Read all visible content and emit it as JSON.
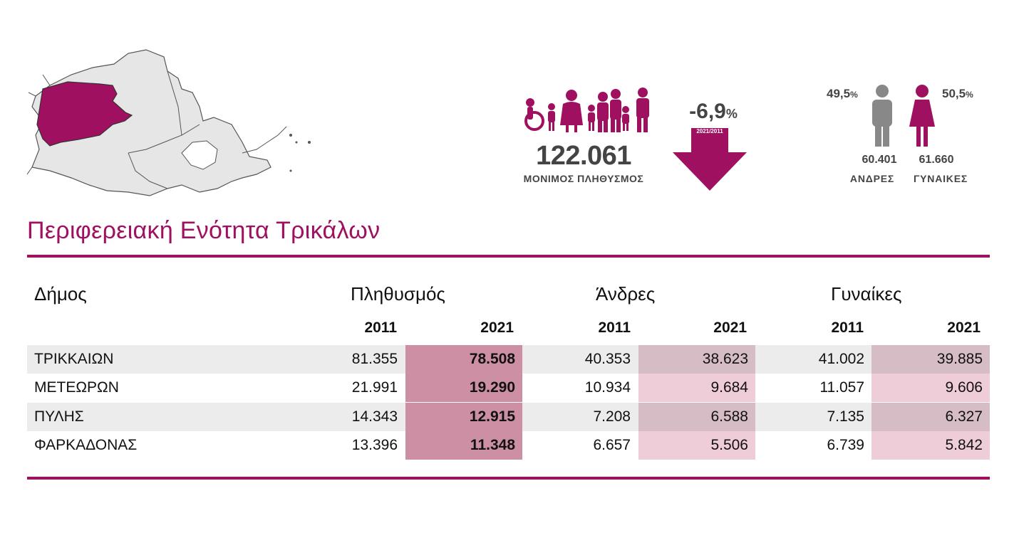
{
  "summary": {
    "total_population": "122.061",
    "total_label": "ΜΟΝΙΜΟΣ ΠΛΗΘΥΣΜΟΣ",
    "change_value": "-6,9",
    "change_unit": "%",
    "change_period": "2021/2011",
    "men_percent": "49,5",
    "women_percent": "50,5",
    "percent_sign": "%",
    "men_count": "60.401",
    "women_count": "61.660",
    "men_label": "ΑΝΔΡΕΣ",
    "women_label": "ΓΥΝΑΙΚΕΣ"
  },
  "title": "Περιφερειακή Ενότητα Τρικάλων",
  "colors": {
    "accent": "#a01060",
    "map_fill": "#e6e6e6",
    "pop_2021_bg": "#cc8fa3",
    "men_women_2021_dark_bg": "#d6bcc5",
    "men_women_2021_light_bg": "#efcdd8",
    "row_shade": "#ececec"
  },
  "icons": {
    "map": "regional-map-icon",
    "population": "population-group-icon",
    "change": "down-arrow-icon",
    "man": "man-icon",
    "woman": "woman-icon"
  },
  "table": {
    "headers": {
      "municipality": "Δήμος",
      "population": "Πληθυσμός",
      "men": "Άνδρες",
      "women": "Γυναίκες"
    },
    "years": [
      "2011",
      "2021",
      "2011",
      "2021",
      "2011",
      "2021"
    ],
    "rows": [
      {
        "name": "ΤΡΙΚΚΑΙΩΝ",
        "pop_2011": "81.355",
        "pop_2021": "78.508",
        "men_2011": "40.353",
        "men_2021": "38.623",
        "women_2011": "41.002",
        "women_2021": "39.885"
      },
      {
        "name": "ΜΕΤΕΩΡΩΝ",
        "pop_2011": "21.991",
        "pop_2021": "19.290",
        "men_2011": "10.934",
        "men_2021": "9.684",
        "women_2011": "11.057",
        "women_2021": "9.606"
      },
      {
        "name": "ΠΥΛΗΣ",
        "pop_2011": "14.343",
        "pop_2021": "12.915",
        "men_2011": "7.208",
        "men_2021": "6.588",
        "women_2011": "7.135",
        "women_2021": "6.327"
      },
      {
        "name": "ΦΑΡΚΑΔΟΝΑΣ",
        "pop_2011": "13.396",
        "pop_2021": "11.348",
        "men_2011": "6.657",
        "men_2021": "5.506",
        "women_2011": "6.739",
        "women_2021": "5.842"
      }
    ]
  }
}
